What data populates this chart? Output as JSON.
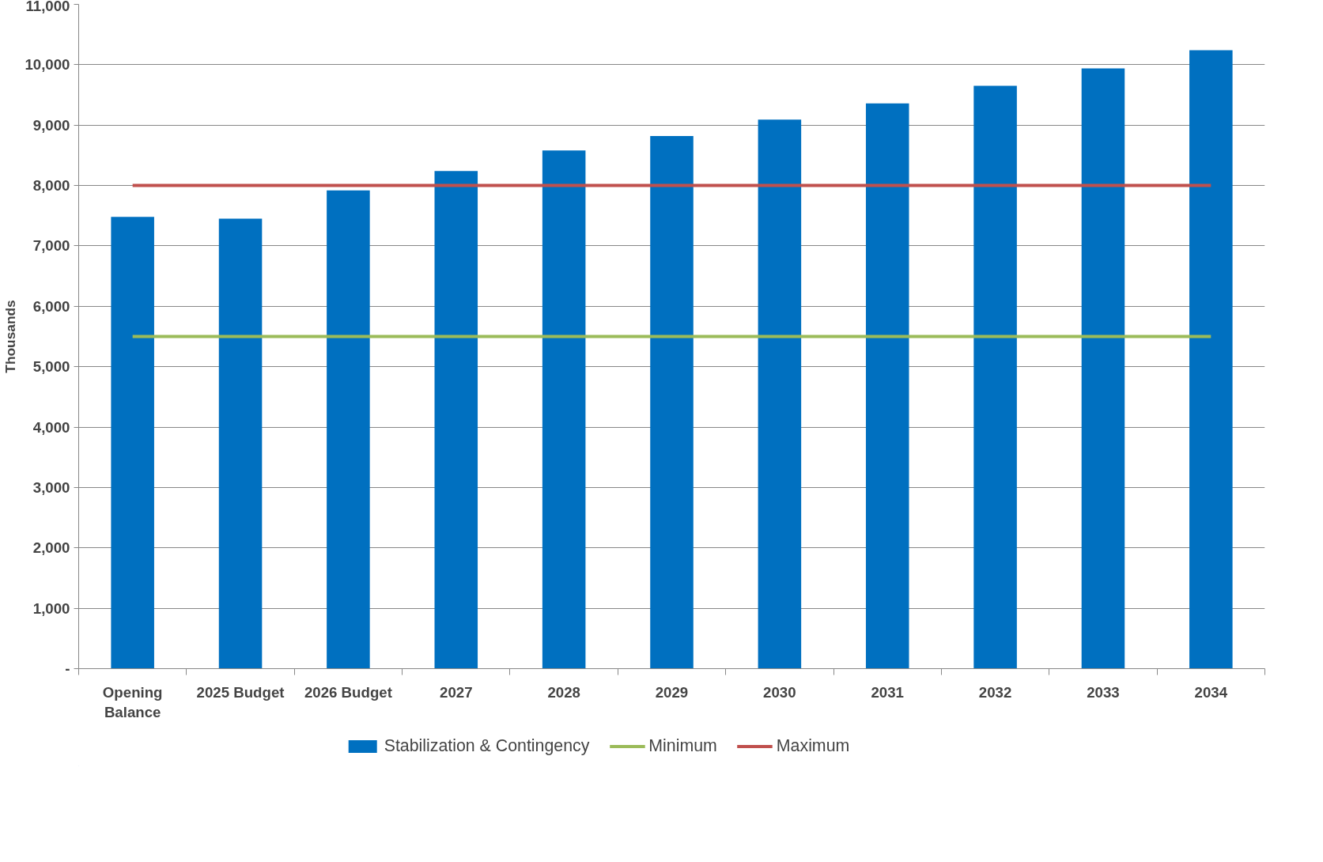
{
  "chart_data": {
    "type": "bar",
    "ylabel": "Thousands",
    "categories": [
      "Opening Balance",
      "2025 Budget",
      "2026 Budget",
      "2027",
      "2028",
      "2029",
      "2030",
      "2031",
      "2032",
      "2033",
      "2034"
    ],
    "series": [
      {
        "name": "Stabilization & Contingency",
        "color": "#0070c0",
        "values": [
          7480,
          7450,
          7920,
          8240,
          8580,
          8820,
          9090,
          9360,
          9650,
          9940,
          10240
        ]
      },
      {
        "name": "Minimum",
        "type": "line",
        "color": "#9bbb59",
        "values": [
          5500,
          5500,
          5500,
          5500,
          5500,
          5500,
          5500,
          5500,
          5500,
          5500,
          5500
        ]
      },
      {
        "name": "Maximum",
        "type": "line",
        "color": "#c0504d",
        "values": [
          8000,
          8000,
          8000,
          8000,
          8000,
          8000,
          8000,
          8000,
          8000,
          8000,
          8000
        ]
      }
    ],
    "ylim": [
      0,
      11000
    ],
    "yticks": [
      {
        "value": 0,
        "label": "-"
      },
      {
        "value": 1000,
        "label": "1,000"
      },
      {
        "value": 2000,
        "label": "2,000"
      },
      {
        "value": 3000,
        "label": "3,000"
      },
      {
        "value": 4000,
        "label": "4,000"
      },
      {
        "value": 5000,
        "label": "5,000"
      },
      {
        "value": 6000,
        "label": "6,000"
      },
      {
        "value": 7000,
        "label": "7,000"
      },
      {
        "value": 8000,
        "label": "8,000"
      },
      {
        "value": 9000,
        "label": "9,000"
      },
      {
        "value": 10000,
        "label": "10,000"
      },
      {
        "value": 11000,
        "label": "11,000"
      }
    ],
    "grid": "y",
    "legend": "bottom",
    "marker": "none",
    "line_style": "solid"
  }
}
